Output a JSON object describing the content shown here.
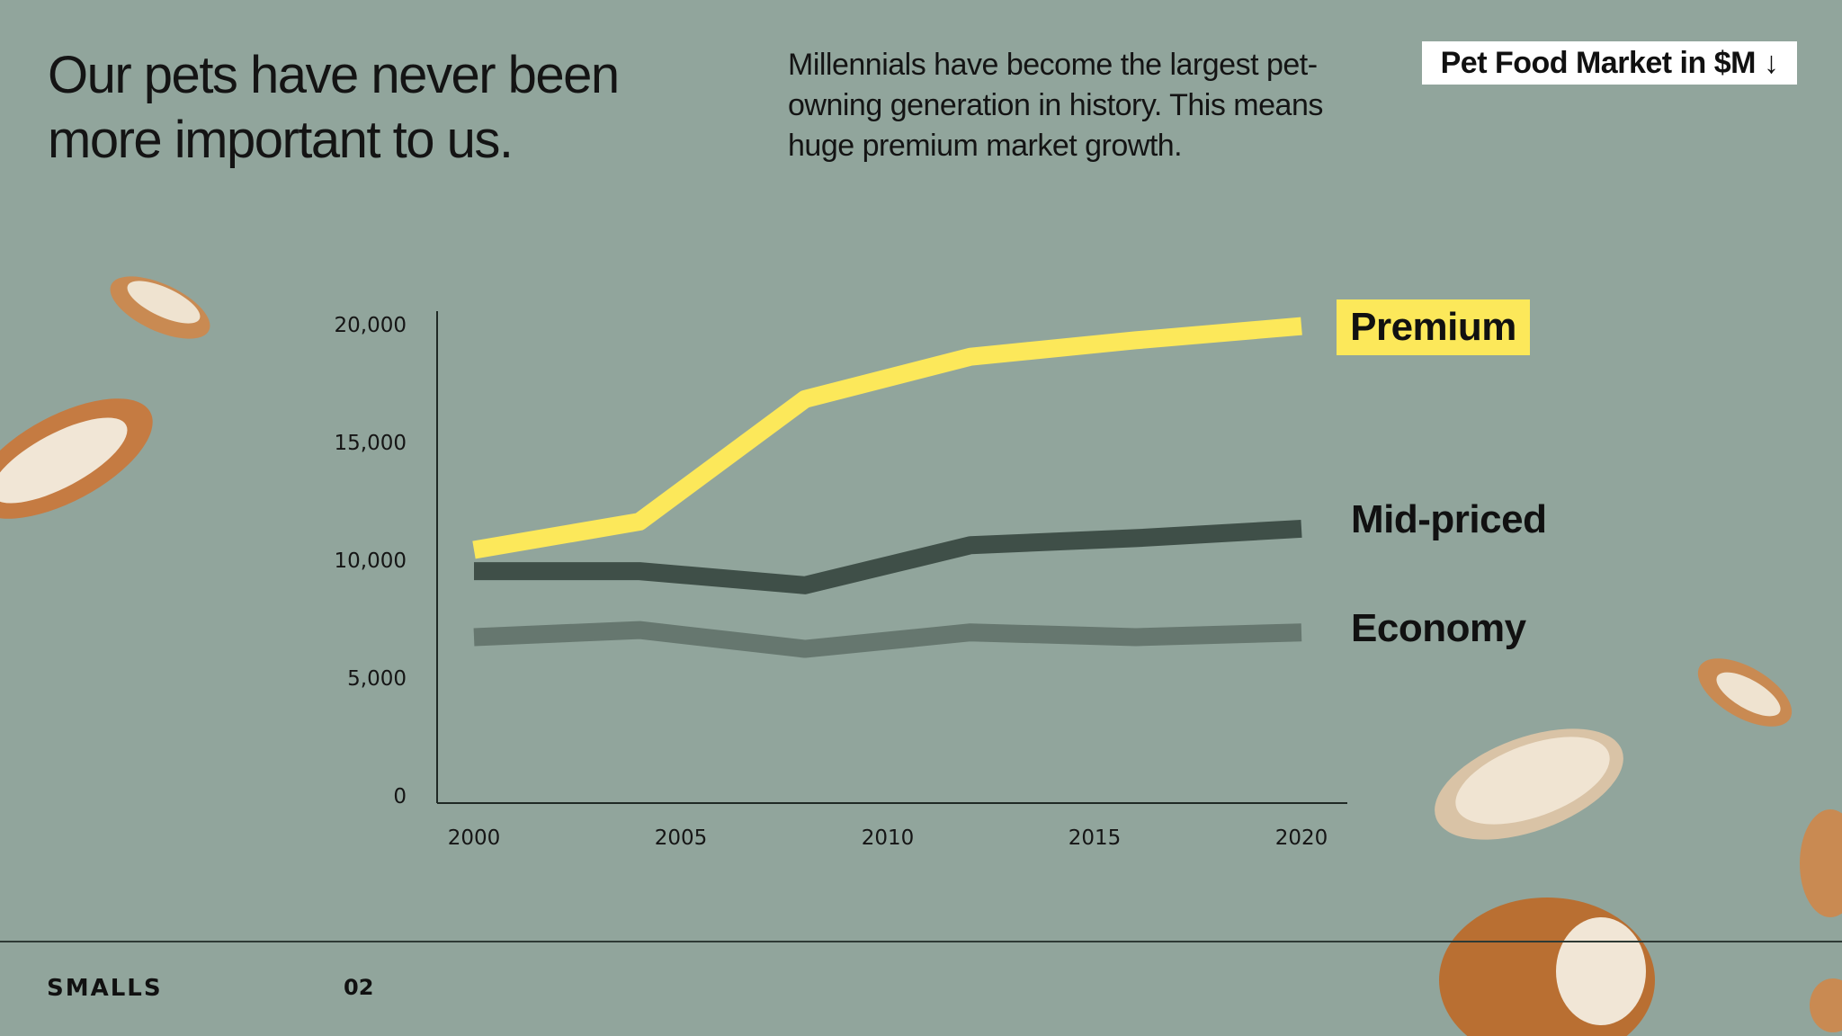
{
  "header": {
    "headline": "Our pets have never been more important to us.",
    "subtext": "Millennials have become the largest pet-owning generation in history. This means huge premium market growth.",
    "legend_button": "Pet Food Market in $M ↓"
  },
  "footer": {
    "brand": "SMALLS",
    "page_number": "02"
  },
  "colors": {
    "background": "#91a59c",
    "premium": "#fce85a",
    "mid_priced": "#3f4f48",
    "economy": "#66776f"
  },
  "chart_data": {
    "type": "line",
    "title": "Pet Food Market in $M",
    "xlabel": "",
    "ylabel": "",
    "x": [
      2000,
      2004,
      2008,
      2012,
      2016,
      2020
    ],
    "xticks": [
      "2000",
      "2005",
      "2010",
      "2015",
      "2020"
    ],
    "yticks": [
      "0",
      "5,000",
      "10,000",
      "15,000",
      "20,000"
    ],
    "ylim": [
      0,
      20000
    ],
    "xlim": [
      2000,
      2020
    ],
    "grid": false,
    "legend": "right",
    "series": [
      {
        "name": "Premium",
        "values": [
          10400,
          11600,
          16800,
          18600,
          19300,
          19900
        ]
      },
      {
        "name": "Mid-priced",
        "values": [
          9500,
          9500,
          8900,
          10600,
          10900,
          11300
        ]
      },
      {
        "name": "Economy",
        "values": [
          6700,
          7000,
          6200,
          6900,
          6700,
          6900
        ]
      }
    ]
  }
}
